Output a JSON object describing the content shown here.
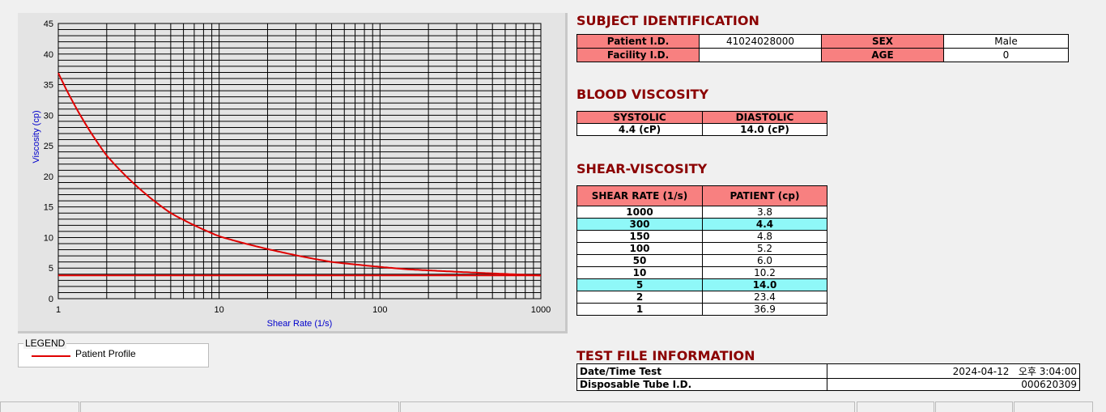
{
  "chart_data": {
    "type": "line",
    "xlabel": "Shear Rate (1/s)",
    "ylabel": "Viscosity (cp)",
    "xscale": "log",
    "xlim": [
      1,
      1000
    ],
    "ylim": [
      0,
      45
    ],
    "xticks": [
      "1",
      "10",
      "100",
      "1000"
    ],
    "yticks": [
      "0",
      "5",
      "10",
      "15",
      "20",
      "25",
      "30",
      "35",
      "40",
      "45"
    ],
    "grid": true,
    "series": [
      {
        "name": "Patient Profile",
        "color": "#e00000",
        "x": [
          1,
          2,
          5,
          10,
          50,
          100,
          150,
          300,
          1000
        ],
        "y": [
          36.9,
          23.4,
          14.0,
          10.2,
          6.0,
          5.2,
          4.8,
          4.4,
          3.8
        ]
      },
      {
        "color": "#e00000",
        "x": [
          1,
          1000
        ],
        "y": [
          3.8,
          3.8
        ]
      }
    ]
  },
  "legend": {
    "title": "LEGEND",
    "items": [
      "Patient Profile"
    ]
  },
  "subject": {
    "title": "SUBJECT IDENTIFICATION",
    "patient_id_label": "Patient I.D.",
    "patient_id": "41024028000",
    "sex_label": "SEX",
    "sex": "Male",
    "facility_label": "Facility I.D.",
    "facility": "",
    "age_label": "AGE",
    "age": "0"
  },
  "blood": {
    "title": "BLOOD VISCOSITY",
    "systolic_label": "SYSTOLIC",
    "diastolic_label": "DIASTOLIC",
    "systolic": "4.4 (cP)",
    "diastolic": "14.0 (cP)"
  },
  "shear": {
    "title": "SHEAR-VISCOSITY",
    "col1": "SHEAR RATE (1/s)",
    "col2": "PATIENT (cp)",
    "rows": [
      [
        "1000",
        "3.8",
        false
      ],
      [
        "300",
        "4.4",
        true
      ],
      [
        "150",
        "4.8",
        false
      ],
      [
        "100",
        "5.2",
        false
      ],
      [
        "50",
        "6.0",
        false
      ],
      [
        "10",
        "10.2",
        false
      ],
      [
        "5",
        "14.0",
        true
      ],
      [
        "2",
        "23.4",
        false
      ],
      [
        "1",
        "36.9",
        false
      ]
    ]
  },
  "testfile": {
    "title": "TEST FILE INFORMATION",
    "date_label": "Date/Time Test",
    "date": "2024-04-12   오후 3:04:00",
    "tube_label": "Disposable Tube I.D.",
    "tube": "000620309"
  },
  "colors": {
    "header": "#f88080",
    "highlight": "#8ff8f8",
    "title": "#8b0000"
  }
}
